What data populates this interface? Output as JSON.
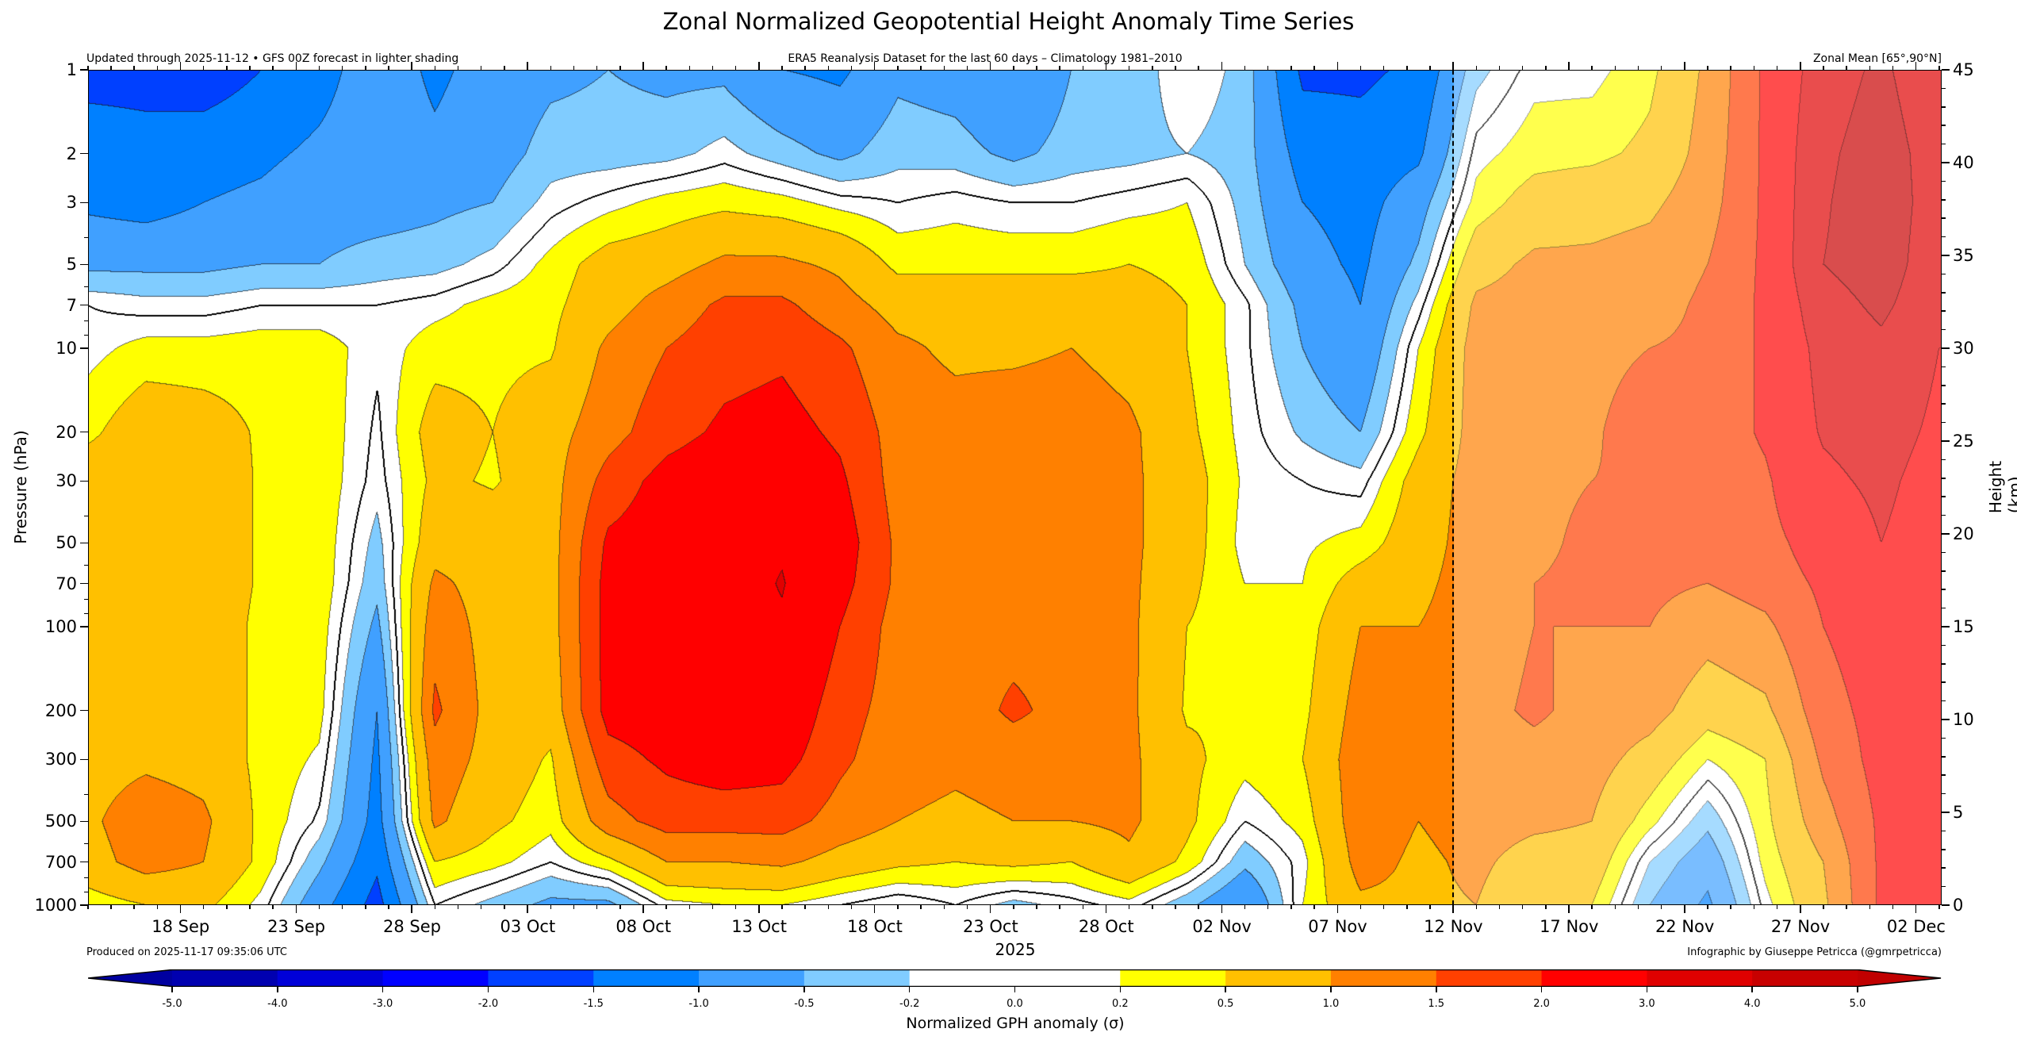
{
  "title": "Zonal Normalized Geopotential Height Anomaly Time Series",
  "subtitle_left": "Updated through 2025-11-12 • GFS 00Z forecast in lighter shading",
  "subtitle_center": "ERA5 Reanalysis Dataset for the last 60 days – Climatology 1981–2010",
  "subtitle_right": "Zonal Mean [65°,90°N]",
  "footer_left": "Produced on 2025-11-17 09:35:06 UTC",
  "footer_right": "Infographic by Giuseppe Petricca (@gmrpetricca)",
  "chart_data": {
    "type": "contour",
    "xlabel": "2025",
    "ylabel": "Pressure (hPa)",
    "ylabel_right": "Height (km)",
    "colorbar_label": "Normalized GPH anomaly (σ)",
    "x_unit": "days since start of plotted period",
    "xlim": [
      0,
      80.1
    ],
    "ylim": [
      1000,
      1
    ],
    "ylim_right": [
      0,
      45
    ],
    "forecast_start_day": 59,
    "x_ticks": [
      {
        "day": 4,
        "label": "18 Sep"
      },
      {
        "day": 9,
        "label": "23 Sep"
      },
      {
        "day": 14,
        "label": "28 Sep"
      },
      {
        "day": 19,
        "label": "03 Oct"
      },
      {
        "day": 24,
        "label": "08 Oct"
      },
      {
        "day": 29,
        "label": "13 Oct"
      },
      {
        "day": 34,
        "label": "18 Oct"
      },
      {
        "day": 39,
        "label": "23 Oct"
      },
      {
        "day": 44,
        "label": "28 Oct"
      },
      {
        "day": 49,
        "label": "02 Nov"
      },
      {
        "day": 54,
        "label": "07 Nov"
      },
      {
        "day": 59,
        "label": "12 Nov"
      },
      {
        "day": 64,
        "label": "17 Nov"
      },
      {
        "day": 69,
        "label": "22 Nov"
      },
      {
        "day": 74,
        "label": "27 Nov"
      },
      {
        "day": 79,
        "label": "02 Dec"
      }
    ],
    "y_ticks": [
      "1",
      "2",
      "3",
      "5",
      "7",
      "10",
      "20",
      "30",
      "50",
      "70",
      "100",
      "200",
      "300",
      "500",
      "700",
      "1000"
    ],
    "y_ticks_right": [
      "0",
      "5",
      "10",
      "15",
      "20",
      "25",
      "30",
      "35",
      "40",
      "45"
    ],
    "levels": [
      -5.0,
      -4.0,
      -3.0,
      -2.0,
      -1.5,
      -1.0,
      -0.5,
      -0.2,
      0.0,
      0.2,
      0.5,
      1.0,
      1.5,
      2.0,
      3.0,
      4.0,
      5.0
    ],
    "level_labels": [
      "-5.0",
      "-4.0",
      "-3.0",
      "-2.0",
      "-1.5",
      "-1.0",
      "-0.5",
      "-0.2",
      "0.0",
      "0.2",
      "0.5",
      "1.0",
      "1.5",
      "2.0",
      "3.0",
      "4.0",
      "5.0"
    ],
    "colors": [
      "#0000b0",
      "#0000d8",
      "#0000ff",
      "#0040ff",
      "#0080ff",
      "#40a0ff",
      "#80ccff",
      "#ffffff",
      "#ffffff",
      "#ffff00",
      "#ffc000",
      "#ff8000",
      "#ff4000",
      "#ff0000",
      "#e00000",
      "#c80000"
    ],
    "extend_low_color": "#0000a0",
    "extend_high_color": "#c00000",
    "pressure_levels": [
      1,
      2,
      3,
      5,
      7,
      10,
      20,
      30,
      50,
      70,
      100,
      200,
      300,
      500,
      700,
      1000
    ],
    "x_days": [
      0,
      2.5,
      5,
      7.5,
      10,
      12.5,
      15,
      17.5,
      20,
      22.5,
      25,
      27.5,
      30,
      32.5,
      35,
      37.5,
      40,
      42.5,
      45,
      47.5,
      50,
      52.5,
      55,
      57.5,
      60,
      62.5,
      65,
      67.5,
      70,
      72.5,
      75,
      77.5,
      80
    ],
    "values": [
      [
        -1.7,
        -1.2,
        -1.1,
        -0.6,
        0,
        0.1,
        0.4,
        0.8,
        0.8,
        0.8,
        0.8,
        0.8,
        0.8,
        0.9,
        0.8,
        0.3
      ],
      [
        -1.7,
        -1.3,
        -1.2,
        -0.6,
        -0.1,
        0.3,
        0.8,
        0.8,
        0.8,
        0.8,
        0.8,
        0.8,
        0.9,
        1.3,
        1.2,
        0.5
      ],
      [
        -1.8,
        -1.2,
        -1.0,
        -0.6,
        -0.1,
        0.3,
        0.7,
        0.8,
        0.8,
        0.8,
        0.8,
        0.8,
        0.8,
        1.1,
        1.0,
        0.6
      ],
      [
        -1.5,
        -1.1,
        -0.9,
        -0.5,
        0,
        0.35,
        0.45,
        0.45,
        0.45,
        0.45,
        0.4,
        0.4,
        0.4,
        0.4,
        0.4,
        0.1
      ],
      [
        -1.2,
        -0.9,
        -0.7,
        -0.5,
        0,
        0.35,
        0.4,
        0.4,
        0.4,
        0.4,
        0.35,
        0.3,
        0.15,
        -0.05,
        -0.4,
        -0.8
      ],
      [
        -0.7,
        -0.7,
        -0.7,
        -0.35,
        0,
        0.05,
        -0.05,
        -0.1,
        -0.3,
        -0.4,
        -0.6,
        -1.0,
        -1.1,
        -1.2,
        -1.4,
        -1.7
      ],
      [
        -1.1,
        -0.9,
        -0.6,
        -0.3,
        0.1,
        0.35,
        0.7,
        0.6,
        0.8,
        1.1,
        1.3,
        1.6,
        1.3,
        1.1,
        0.5,
        0.0
      ],
      [
        -0.8,
        -0.7,
        -0.5,
        -0.1,
        0.3,
        0.4,
        0.5,
        0.45,
        0.8,
        0.8,
        0.8,
        0.8,
        0.8,
        0.6,
        0.3,
        -0.3
      ],
      [
        -0.6,
        -0.35,
        -0.1,
        0.3,
        0.4,
        0.45,
        0.8,
        0.8,
        0.8,
        0.8,
        0.8,
        0.7,
        0.45,
        0.3,
        0.0,
        -0.6
      ],
      [
        -0.5,
        -0.35,
        0.1,
        0.7,
        0.8,
        1.1,
        1.3,
        1.7,
        2.1,
        2.2,
        2.2,
        2.2,
        1.8,
        1.3,
        0.4,
        -0.6
      ],
      [
        -0.6,
        -0.3,
        0.3,
        0.8,
        1.2,
        1.5,
        1.8,
        2.2,
        2.3,
        2.3,
        2.4,
        2.3,
        2.1,
        1.7,
        1.0,
        0.1
      ],
      [
        -0.6,
        -0.1,
        0.4,
        1.1,
        1.6,
        1.8,
        2.1,
        2.4,
        2.6,
        2.6,
        2.6,
        2.5,
        2.3,
        1.7,
        1.0,
        0.2
      ],
      [
        -1.0,
        -0.35,
        0.3,
        1.1,
        1.6,
        1.9,
        2.2,
        2.4,
        2.9,
        3.05,
        2.9,
        2.5,
        2.2,
        1.7,
        1.1,
        0.2
      ],
      [
        -1.1,
        -0.6,
        0.1,
        0.9,
        1.2,
        1.6,
        1.9,
        2.1,
        2.3,
        2.2,
        2.0,
        1.7,
        1.6,
        1.3,
        0.8,
        0.0
      ],
      [
        -0.6,
        -0.3,
        0.0,
        0.4,
        0.8,
        1.1,
        1.3,
        1.3,
        1.4,
        1.4,
        1.3,
        1.3,
        1.2,
        1.0,
        0.6,
        -0.2
      ],
      [
        -0.7,
        -0.35,
        0.1,
        0.4,
        0.8,
        0.9,
        1.2,
        1.2,
        1.3,
        1.3,
        1.3,
        1.2,
        1.1,
        0.9,
        0.5,
        0.0
      ],
      [
        -1.0,
        -0.6,
        0.0,
        0.4,
        0.8,
        0.9,
        1.3,
        1.3,
        1.3,
        1.3,
        1.3,
        1.6,
        1.2,
        1.0,
        0.6,
        -0.3
      ],
      [
        -0.5,
        -0.35,
        0.0,
        0.4,
        0.8,
        1.0,
        1.3,
        1.3,
        1.3,
        1.3,
        1.3,
        1.3,
        1.2,
        1.0,
        0.5,
        -0.1
      ],
      [
        -0.4,
        -0.3,
        0.1,
        0.5,
        0.7,
        0.8,
        1.1,
        1.1,
        1.1,
        1.1,
        1.1,
        1.1,
        1.1,
        1.1,
        0.9,
        0.1
      ],
      [
        0.0,
        -0.2,
        0.2,
        0.4,
        0.5,
        0.5,
        0.6,
        0.7,
        0.7,
        0.6,
        0.5,
        0.45,
        0.6,
        0.6,
        0.4,
        -0.4
      ],
      [
        -0.3,
        -0.35,
        -0.3,
        -0.2,
        0.05,
        0.05,
        0.1,
        0.15,
        0.1,
        0.2,
        0.3,
        0.5,
        0.3,
        0.0,
        -0.4,
        -1.0
      ],
      [
        -1.6,
        -1.2,
        -1.0,
        -0.8,
        -0.6,
        -0.5,
        -0.25,
        0.0,
        0.15,
        0.2,
        0.3,
        0.4,
        0.5,
        0.3,
        0.1,
        0.2
      ],
      [
        -1.6,
        -1.3,
        -1.2,
        -1.1,
        -1.0,
        -0.9,
        -0.5,
        -0.1,
        0.3,
        0.7,
        1.0,
        1.2,
        1.3,
        1.3,
        1.2,
        0.9
      ],
      [
        -1.4,
        -1.1,
        -0.7,
        -0.4,
        -0.1,
        0.2,
        0.4,
        0.7,
        0.8,
        0.9,
        1.0,
        1.1,
        1.1,
        1.0,
        0.9,
        0.9
      ],
      [
        -0.3,
        0.1,
        0.3,
        0.8,
        1.1,
        1.2,
        1.2,
        1.2,
        1.2,
        1.2,
        1.2,
        1.3,
        1.2,
        1.2,
        1.1,
        1.0
      ],
      [
        0.1,
        0.35,
        0.7,
        1.1,
        1.2,
        1.3,
        1.3,
        1.4,
        1.4,
        1.5,
        1.5,
        1.6,
        1.3,
        1.1,
        0.8,
        0.6
      ],
      [
        0.1,
        0.4,
        0.8,
        1.1,
        1.2,
        1.3,
        1.4,
        1.5,
        1.6,
        1.6,
        1.5,
        1.3,
        1.2,
        1.0,
        0.8,
        0.5
      ],
      [
        0.4,
        0.6,
        0.9,
        1.2,
        1.3,
        1.5,
        1.9,
        1.6,
        1.6,
        1.6,
        1.5,
        1.2,
        0.8,
        0.3,
        -0.2,
        -0.5
      ],
      [
        1.1,
        1.2,
        1.3,
        1.5,
        1.6,
        1.6,
        1.6,
        1.6,
        1.6,
        1.5,
        1.2,
        0.7,
        0.2,
        -0.4,
        -0.8,
        -1.1
      ],
      [
        2.1,
        2.1,
        2.1,
        2.1,
        2.1,
        2.1,
        2.1,
        1.9,
        1.8,
        1.7,
        1.4,
        0.9,
        0.5,
        0.4,
        0.3,
        0.1
      ],
      [
        3.5,
        3.8,
        3.9,
        4.0,
        3.6,
        3.3,
        3.1,
        2.8,
        2.3,
        2.1,
        2.0,
        1.8,
        1.6,
        1.3,
        1.0,
        0.9
      ],
      [
        4.2,
        4.5,
        4.6,
        4.5,
        4.2,
        3.8,
        3.4,
        3.2,
        3.0,
        2.6,
        2.3,
        2.2,
        2.2,
        2.1,
        2.1,
        2.1
      ],
      [
        3.2,
        3.5,
        3.5,
        3.4,
        3.3,
        3.0,
        2.8,
        2.6,
        2.5,
        2.3,
        2.2,
        2.1,
        2.2,
        2.2,
        2.2,
        2.2
      ]
    ]
  }
}
